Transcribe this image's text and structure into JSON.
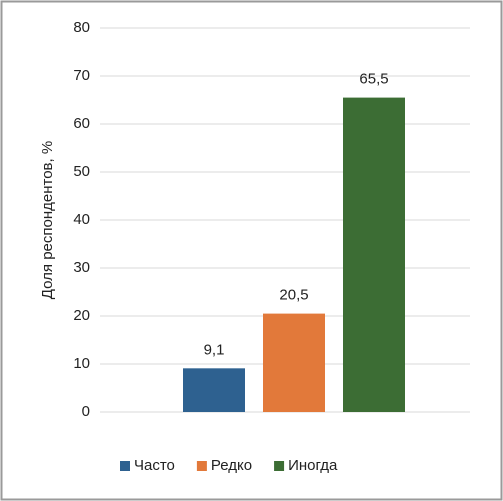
{
  "chart_data": {
    "type": "bar",
    "y_label": "Доля респондентов, %",
    "series": [
      {
        "name": "Часто",
        "color": "#2e6190",
        "values": [
          9.1
        ],
        "value_labels": [
          "9,1"
        ]
      },
      {
        "name": "Редко",
        "color": "#e2793a",
        "values": [
          20.5
        ],
        "value_labels": [
          "20,5"
        ]
      },
      {
        "name": "Иногда",
        "color": "#3c6d34",
        "values": [
          65.5
        ],
        "value_labels": [
          "65,5"
        ]
      }
    ],
    "ylim": [
      0,
      80
    ],
    "yticks": [
      0,
      10,
      20,
      30,
      40,
      50,
      60,
      70,
      80
    ],
    "grid": true,
    "legend": "bottom"
  }
}
